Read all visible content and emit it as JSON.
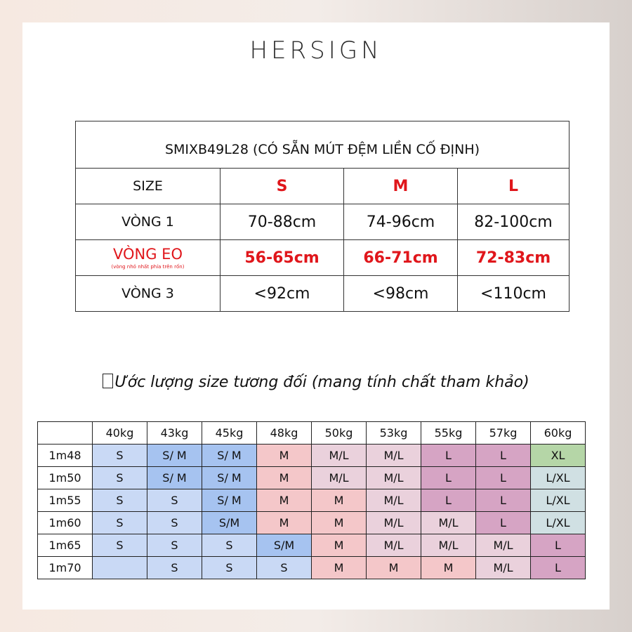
{
  "brand": "HERSIGN",
  "size_table": {
    "title": "SMIXB49L28 (CÓ SẴN MÚT ĐỆM LIỀN CỐ ĐỊNH)",
    "header": [
      "SIZE",
      "S",
      "M",
      "L"
    ],
    "rows": [
      {
        "label": "VÒNG 1",
        "note": "",
        "values": [
          "70-88cm",
          "74-96cm",
          "82-100cm"
        ]
      },
      {
        "label": "VÒNG EO",
        "note": "(vòng nhỏ nhất phía trên rốn)",
        "values": [
          "56-65cm",
          "66-71cm",
          "72-83cm"
        ]
      },
      {
        "label": "VÒNG 3",
        "note": "",
        "values": [
          "<92cm",
          "<98cm",
          "<110cm"
        ]
      }
    ]
  },
  "estimate": {
    "heading": "Ước lượng size tương đối (mang tính chất tham khảo)",
    "weights": [
      "",
      "40kg",
      "43kg",
      "45kg",
      "48kg",
      "50kg",
      "53kg",
      "55kg",
      "57kg",
      "60kg"
    ],
    "rows": [
      {
        "height": "1m48",
        "cells": [
          "S",
          "S/ M",
          "S/ M",
          "M",
          "M/L",
          "M/L",
          "L",
          "L",
          "XL"
        ]
      },
      {
        "height": "1m50",
        "cells": [
          "S",
          "S/ M",
          "S/ M",
          "M",
          "M/L",
          "M/L",
          "L",
          "L",
          "L/XL"
        ]
      },
      {
        "height": "1m55",
        "cells": [
          "S",
          "S",
          "S/ M",
          "M",
          "M",
          "M/L",
          "L",
          "L",
          "L/XL"
        ]
      },
      {
        "height": "1m60",
        "cells": [
          "S",
          "S",
          "S/M",
          "M",
          "M",
          "M/L",
          "M/L",
          "L",
          "L/XL"
        ]
      },
      {
        "height": "1m65",
        "cells": [
          "S",
          "S",
          "S",
          "S/M",
          "M",
          "M/L",
          "M/L",
          "M/L",
          "L"
        ]
      },
      {
        "height": "1m70",
        "cells": [
          "",
          "S",
          "S",
          "S",
          "M",
          "M",
          "M",
          "M/L",
          "L"
        ]
      }
    ],
    "colors": {
      "lightblue": "#c9d9f5",
      "blue": "#a6c3f0",
      "pink": "#f4c7c9",
      "lightpurple": "#ead1dc",
      "purple": "#d6a4c4",
      "green": "#b5d6a7",
      "teal": "#d0e0e3"
    }
  }
}
